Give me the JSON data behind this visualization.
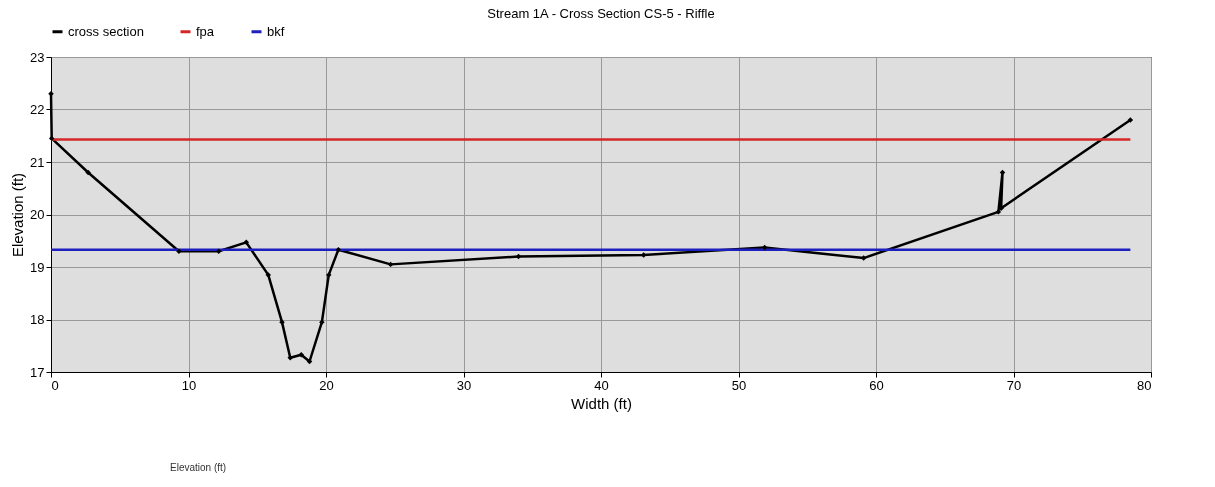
{
  "chart_data": {
    "type": "line",
    "title": "Stream 1A - Cross Section CS-5 - Riffle",
    "xlabel": "Width (ft)",
    "ylabel": "Elevation (ft)",
    "series": [
      {
        "name": "cross section",
        "color": "#000000",
        "marker": "diamond",
        "x": [
          0,
          0.05,
          2.7,
          9.3,
          12.2,
          14.2,
          15.8,
          16.8,
          17.4,
          18.2,
          18.8,
          19.7,
          20.2,
          20.9,
          24.7,
          34,
          43.1,
          51.9,
          59.1,
          68.9,
          69.2,
          69.1,
          78.5
        ],
        "values": [
          22.3,
          21.45,
          20.8,
          19.3,
          19.3,
          19.47,
          18.85,
          17.95,
          17.27,
          17.33,
          17.2,
          17.95,
          18.85,
          19.33,
          19.05,
          19.2,
          19.23,
          19.37,
          19.17,
          20.05,
          20.8,
          20.12,
          21.8
        ]
      },
      {
        "name": "fpa",
        "color": "#d62728",
        "x": [
          0,
          78.5
        ],
        "values": [
          21.43,
          21.43
        ]
      },
      {
        "name": "bkf",
        "color": "#1f1fbf",
        "x": [
          0,
          78.5
        ],
        "values": [
          19.33,
          19.33
        ]
      }
    ],
    "xlim": [
      0,
      80
    ],
    "xticks": [
      0,
      10,
      20,
      30,
      40,
      50,
      60,
      70,
      80
    ],
    "ylim": [
      17,
      23
    ],
    "yticks": [
      17,
      18,
      19,
      20,
      21,
      22,
      23
    ],
    "grid": true,
    "legend": "top",
    "line_style": "solid",
    "annotations": [
      "Elevation (ft)"
    ]
  }
}
